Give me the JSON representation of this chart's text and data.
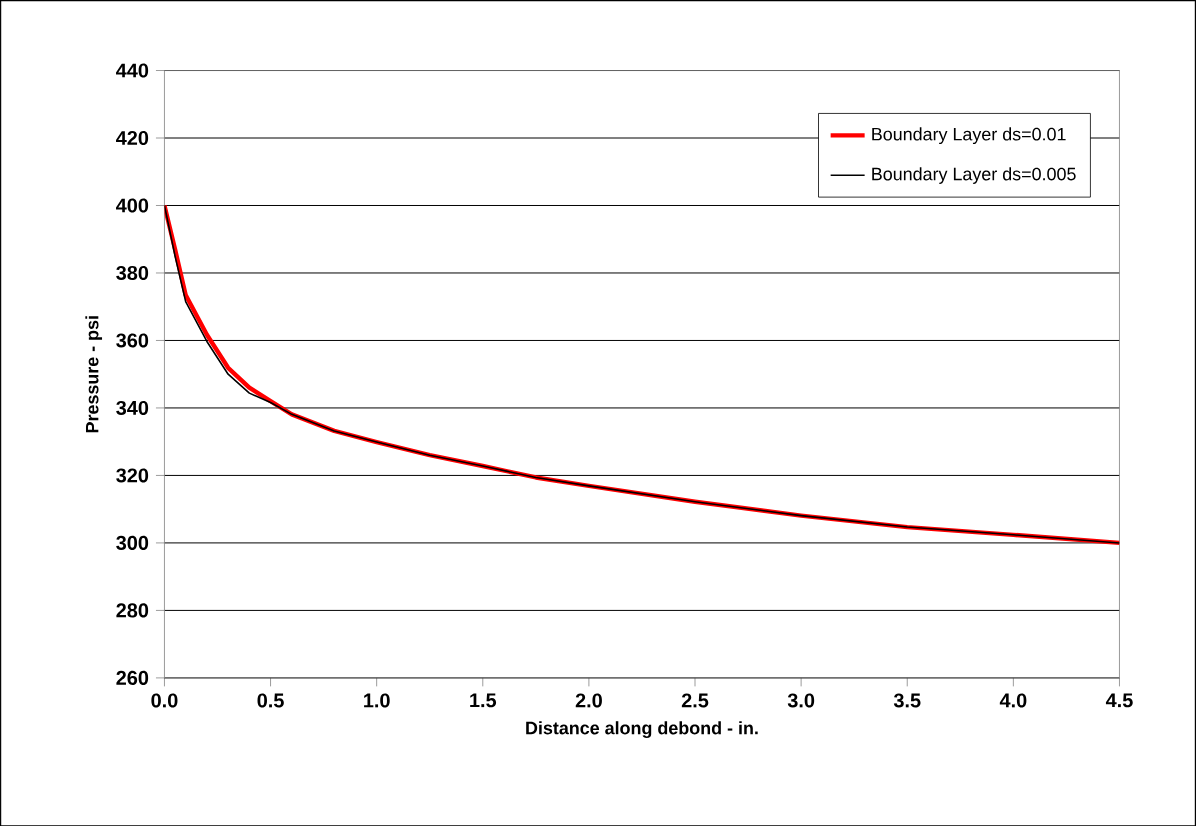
{
  "chart_data": {
    "type": "line",
    "xlabel": "Distance along debond - in.",
    "ylabel": "Pressure - psi",
    "x": [
      0,
      0.05,
      0.1,
      0.2,
      0.3,
      0.4,
      0.5,
      0.6,
      0.8,
      1.0,
      1.25,
      1.5,
      1.75,
      2.0,
      2.5,
      3.0,
      3.5,
      4.0,
      4.5
    ],
    "series": [
      {
        "name": "Boundary Layer ds=0.01",
        "color": "#ff0000",
        "values": [
          400,
          387,
          373.5,
          361.7,
          351.9,
          346,
          342,
          338.1,
          333.2,
          329.9,
          326,
          322.8,
          319.4,
          316.9,
          312.2,
          308.1,
          304.7,
          302.4,
          300
        ]
      },
      {
        "name": "Boundary Layer ds=0.005",
        "color": "#000000",
        "values": [
          400,
          385,
          371.5,
          359.7,
          350,
          344.4,
          341.6,
          338.1,
          333.2,
          329.9,
          326,
          322.8,
          319.4,
          316.9,
          312.2,
          308.1,
          304.7,
          302.4,
          300
        ]
      }
    ],
    "xlim": [
      0,
      4.5
    ],
    "xticks": [
      {
        "value": 0,
        "label": "0.0"
      },
      {
        "value": 0.5,
        "label": "0.5"
      },
      {
        "value": 1,
        "label": "1.0"
      },
      {
        "value": 1.5,
        "label": "1.5"
      },
      {
        "value": 2,
        "label": "2.0"
      },
      {
        "value": 2.5,
        "label": "2.5"
      },
      {
        "value": 3,
        "label": "3.0"
      },
      {
        "value": 3.5,
        "label": "3.5"
      },
      {
        "value": 4,
        "label": "4.0"
      },
      {
        "value": 4.5,
        "label": "4.5"
      }
    ],
    "ylim": [
      260,
      440
    ],
    "yticks": [
      260,
      280,
      300,
      320,
      340,
      360,
      380,
      400,
      420,
      440
    ],
    "grid": "y",
    "legend": "top right",
    "marker": "none",
    "line_style": "solid"
  }
}
